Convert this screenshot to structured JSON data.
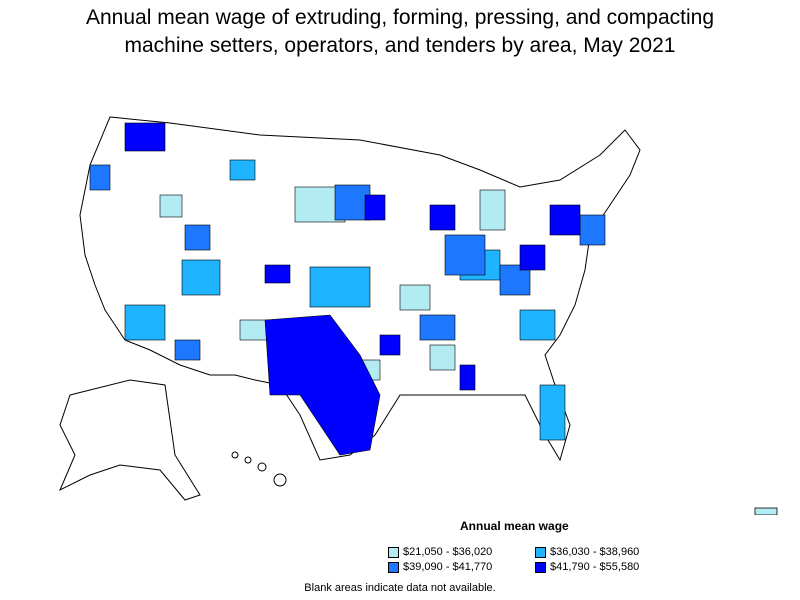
{
  "title_line1": "Annual mean wage of extruding, forming, pressing, and compacting",
  "title_line2": "machine setters, operators, and tenders by area, May 2021",
  "legend": {
    "title": "Annual mean wage",
    "items": [
      {
        "label": "$21,050 - $36,020",
        "color": "#b2ebf2"
      },
      {
        "label": "$36,030 - $38,960",
        "color": "#1eb4ff"
      },
      {
        "label": "$39,090 - $41,770",
        "color": "#1e78ff"
      },
      {
        "label": "$41,790 - $55,580",
        "color": "#0000ff"
      }
    ]
  },
  "footnote": "Blank areas indicate data not available."
}
